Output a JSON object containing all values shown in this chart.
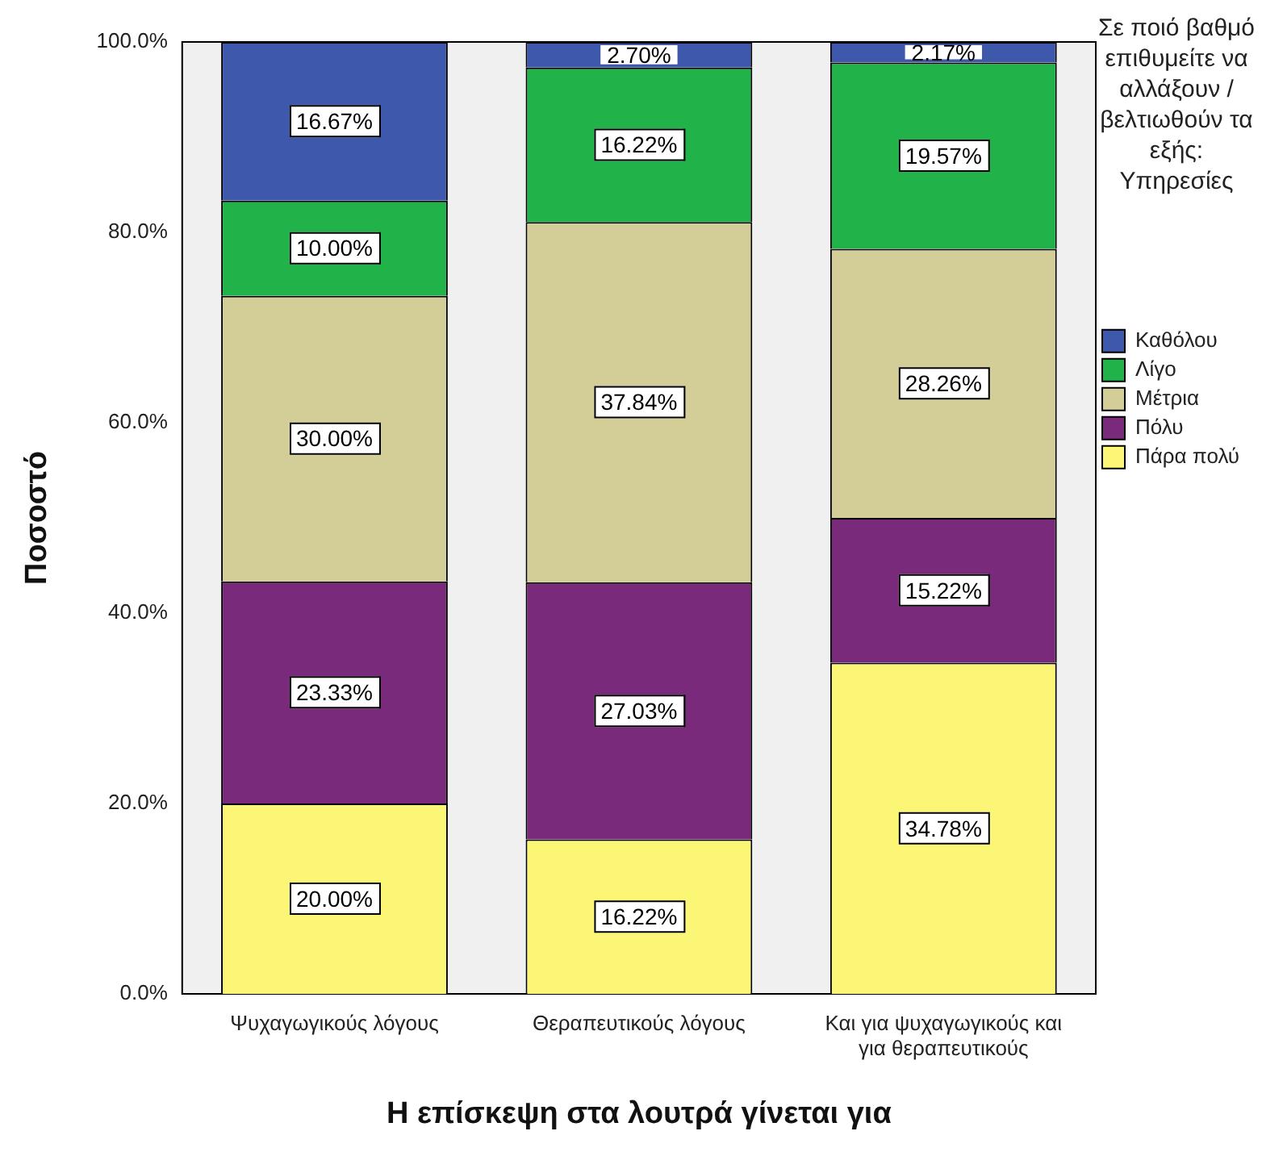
{
  "chart_data": {
    "type": "bar",
    "stacked": true,
    "xlabel": "Η επίσκεψη στα λουτρά γίνεται για",
    "ylabel": "Ποσοστό",
    "legend_title": "Σε ποιό βαθμό επιθυμείτε να αλλάξουν / βελτιωθούν τα εξής: Υπηρεσίες",
    "legend": "top right",
    "grid": false,
    "categories": [
      "Ψυχαγωγικούς λόγους",
      "Θεραπευτικούς λόγους",
      "Και για ψυχαγωγικούς και για θεραπευτικούς"
    ],
    "ylim": [
      0,
      100
    ],
    "yticks": [
      {
        "value": 0,
        "label": "0.0%"
      },
      {
        "value": 20,
        "label": "20.0%"
      },
      {
        "value": 40,
        "label": "40.0%"
      },
      {
        "value": 60,
        "label": "60.0%"
      },
      {
        "value": 80,
        "label": "80.0%"
      },
      {
        "value": 100,
        "label": "100.0%"
      }
    ],
    "series": [
      {
        "name": "Πάρα πολύ",
        "color": "#fcf676",
        "values": [
          20,
          16.22,
          34.78
        ],
        "value_labels": [
          "20.00%",
          "16.22%",
          "34.78%"
        ]
      },
      {
        "name": "Πόλυ",
        "color": "#7a2a7a",
        "values": [
          23.33,
          27.03,
          15.22
        ],
        "value_labels": [
          "23.33%",
          "27.03%",
          "15.22%"
        ]
      },
      {
        "name": "Μέτρια",
        "color": "#d3ce97",
        "values": [
          30,
          37.84,
          28.26
        ],
        "value_labels": [
          "30.00%",
          "37.84%",
          "28.26%"
        ]
      },
      {
        "name": "Λίγο",
        "color": "#21b24a",
        "values": [
          10,
          16.22,
          19.57
        ],
        "value_labels": [
          "10.00%",
          "16.22%",
          "19.57%"
        ]
      },
      {
        "name": "Καθόλου",
        "color": "#3e58ac",
        "values": [
          16.67,
          2.7,
          2.17
        ],
        "value_labels": [
          "16.67%",
          "2.70%",
          "2.17%"
        ]
      }
    ]
  }
}
